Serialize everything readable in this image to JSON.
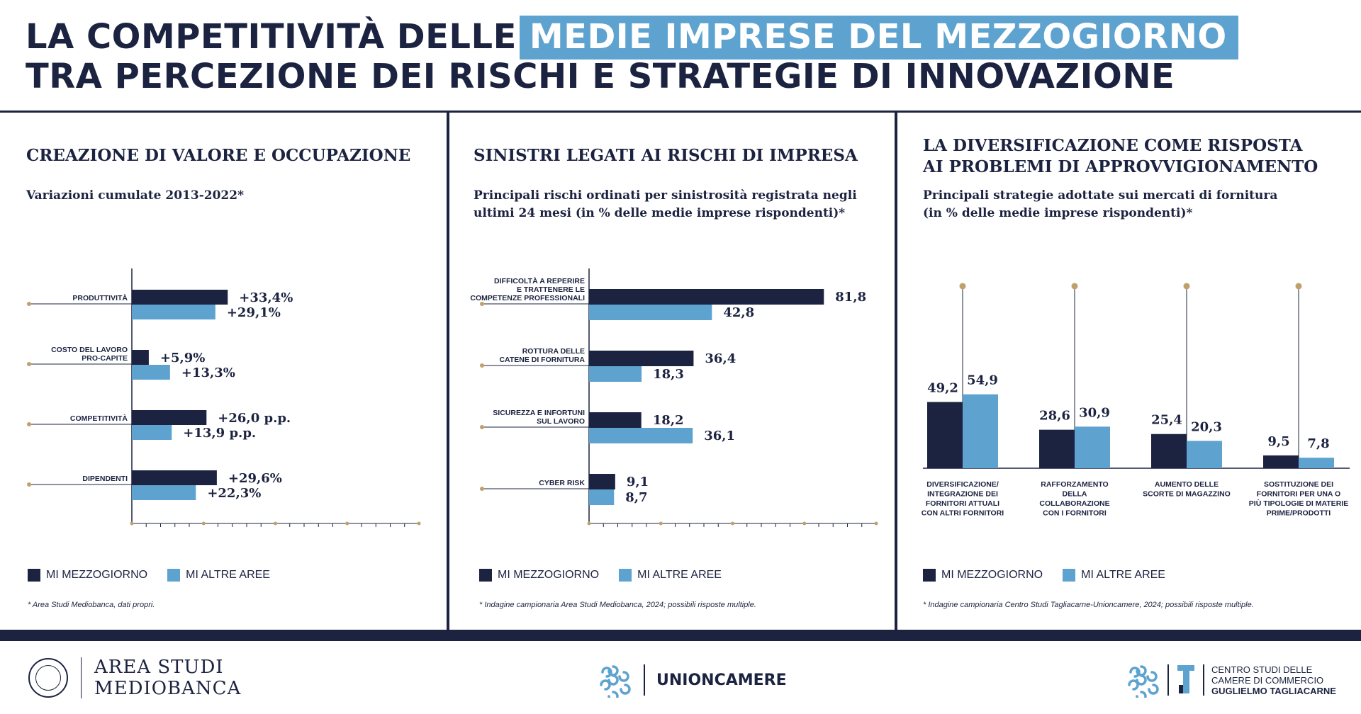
{
  "header": {
    "line1_prefix": "LA COMPETITIVITÀ DELLE",
    "line1_highlight": "MEDIE IMPRESE DEL MEZZOGIORNO",
    "line2": "TRA PERCEZIONE DEI RISCHI E STRATEGIE DI INNOVAZIONE"
  },
  "colors": {
    "dark_navy": "#1c2340",
    "light_blue": "#5ea3d0",
    "gold": "#c2a06b"
  },
  "panels": [
    {
      "title_lines": [
        "CREAZIONE DI VALORE E OCCUPAZIONE"
      ],
      "subtitle_lines": [
        "Variazioni cumulate 2013-2022*"
      ],
      "legend": [
        "MI MEZZOGIORNO",
        "MI ALTRE AREE"
      ],
      "note": "* Area Studi Mediobanca, dati propri."
    },
    {
      "title_lines": [
        "SINISTRI LEGATI AI RISCHI DI IMPRESA"
      ],
      "subtitle_lines": [
        "Principali rischi ordinati per sinistrosità registrata negli",
        "ultimi 24 mesi (in % delle medie imprese rispondenti)*"
      ],
      "legend": [
        "MI MEZZOGIORNO",
        "MI ALTRE AREE"
      ],
      "note": "* Indagine campionaria Area Studi Mediobanca, 2024; possibili risposte multiple."
    },
    {
      "title_lines": [
        "LA DIVERSIFICAZIONE COME RISPOSTA",
        "AI PROBLEMI DI APPROVVIGIONAMENTO"
      ],
      "subtitle_lines": [
        "Principali strategie adottate sui mercati di fornitura",
        "(in % delle medie imprese rispondenti)*"
      ],
      "legend": [
        "MI MEZZOGIORNO",
        "MI ALTRE AREE"
      ],
      "note": "* Indagine campionaria Centro Studi Tagliacarne-Unioncamere, 2024; possibili risposte multiple."
    }
  ],
  "chart_data": [
    {
      "type": "bar",
      "orientation": "horizontal",
      "categories": [
        [
          "PRODUTTIVITÀ"
        ],
        [
          "COSTO DEL LAVORO",
          "PRO-CAPITE"
        ],
        [
          "COMPETITIVITÀ"
        ],
        [
          "DIPENDENTI"
        ]
      ],
      "series": [
        {
          "name": "MI MEZZOGIORNO",
          "values": [
            33.4,
            5.9,
            26.0,
            29.6
          ],
          "labels": [
            "+33,4%",
            "+5,9%",
            "+26,0 p.p.",
            "+29,6%"
          ]
        },
        {
          "name": "MI ALTRE AREE",
          "values": [
            29.1,
            13.3,
            13.9,
            22.3
          ],
          "labels": [
            "+29,1%",
            "+13,3%",
            "+13,9 p.p.",
            "+22,3%"
          ]
        }
      ],
      "xlim": [
        0,
        100
      ]
    },
    {
      "type": "bar",
      "orientation": "horizontal",
      "categories": [
        [
          "DIFFICOLTÀ A REPERIRE",
          "E TRATTENERE LE",
          "COMPETENZE PROFESSIONALI"
        ],
        [
          "ROTTURA DELLE",
          "CATENE DI FORNITURA"
        ],
        [
          "SICUREZZA E INFORTUNI",
          "SUL LAVORO"
        ],
        [
          "CYBER RISK"
        ]
      ],
      "series": [
        {
          "name": "MI MEZZOGIORNO",
          "values": [
            81.8,
            36.4,
            18.2,
            9.1
          ],
          "labels": [
            "81,8",
            "36,4",
            "18,2",
            "9,1"
          ]
        },
        {
          "name": "MI ALTRE AREE",
          "values": [
            42.8,
            18.3,
            36.1,
            8.7
          ],
          "labels": [
            "42,8",
            "18,3",
            "36,1",
            "8,7"
          ]
        }
      ],
      "xlim": [
        0,
        100
      ]
    },
    {
      "type": "bar",
      "orientation": "vertical",
      "categories": [
        [
          "DIVERSIFICAZIONE/",
          "INTEGRAZIONE DEI",
          "FORNITORI ATTUALI",
          "CON ALTRI FORNITORI"
        ],
        [
          "RAFFORZAMENTO",
          "DELLA",
          "COLLABORAZIONE",
          "CON I FORNITORI"
        ],
        [
          "AUMENTO DELLE",
          "SCORTE DI MAGAZZINO"
        ],
        [
          "SOSTITUZIONE DEI",
          "FORNITORI PER UNA O",
          "PIÙ TIPOLOGIE DI MATERIE",
          "PRIME/PRODOTTI"
        ]
      ],
      "series": [
        {
          "name": "MI MEZZOGIORNO",
          "values": [
            49.2,
            28.6,
            25.4,
            9.5
          ],
          "labels": [
            "49,2",
            "28,6",
            "25,4",
            "9,5"
          ]
        },
        {
          "name": "MI ALTRE AREE",
          "values": [
            54.9,
            30.9,
            20.3,
            7.8
          ],
          "labels": [
            "54,9",
            "30,9",
            "20,3",
            "7,8"
          ]
        }
      ],
      "ylim": [
        0,
        100
      ]
    }
  ],
  "footer": {
    "mediobanca_lines": [
      "AREA STUDI",
      "MEDIOBANCA"
    ],
    "unioncamere": "UNIONCAMERE",
    "tagliacarne_lines": [
      "CENTRO STUDI DELLE",
      "CAMERE DI COMMERCIO",
      "GUGLIELMO TAGLIACARNE"
    ]
  }
}
